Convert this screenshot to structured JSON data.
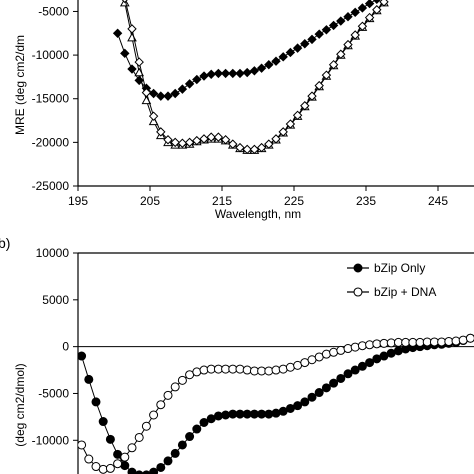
{
  "chart_data": [
    {
      "type": "line",
      "xlabel": "Wavelength, nm",
      "ylabel": "MRE (deg cm2/dm",
      "xlim": [
        195,
        250
      ],
      "ylim": [
        -25000,
        -3000
      ],
      "xticks": [
        195,
        205,
        215,
        225,
        235,
        245
      ],
      "xtick_labels": [
        "195",
        "205",
        "215",
        "225",
        "235",
        "245"
      ],
      "yticks": [
        -25000,
        -20000,
        -15000,
        -10000,
        -5000
      ],
      "ytick_labels": [
        "-25000",
        "-20000",
        "-15000",
        "-10000",
        "-5000"
      ],
      "grid": false,
      "series": [
        {
          "marker": "filled-diamond",
          "x": [
            200.5,
            201.5,
            202.5,
            203.5,
            204.5,
            205.5,
            206.5,
            207.5,
            208.5,
            209.5,
            210.5,
            211.5,
            212.5,
            213.5,
            214.5,
            215.5,
            216.5,
            217.5,
            218.5,
            219.5,
            220.5,
            221.5,
            222.5,
            223.5,
            224.5,
            225.5,
            226.5,
            227.5,
            228.5,
            229.5,
            230.5,
            231.5,
            232.5,
            233.5,
            234.5,
            235.5,
            236.5,
            237.5
          ],
          "y": [
            -7500,
            -9800,
            -11600,
            -12900,
            -13800,
            -14400,
            -14700,
            -14700,
            -14400,
            -13900,
            -13300,
            -12800,
            -12400,
            -12200,
            -12100,
            -12100,
            -12100,
            -12100,
            -12000,
            -11800,
            -11500,
            -11100,
            -10700,
            -10200,
            -9700,
            -9200,
            -8700,
            -8200,
            -7600,
            -7100,
            -6600,
            -6100,
            -5600,
            -5100,
            -4600,
            -4100,
            -3600,
            -3100
          ]
        },
        {
          "marker": "open-triangle",
          "x": [
            201.5,
            202.5,
            203.5,
            204.5,
            205.5,
            206.5,
            207.5,
            208.5,
            209.5,
            210.5,
            211.5,
            212.5,
            213.5,
            214.5,
            215.5,
            216.5,
            217.5,
            218.5,
            219.5,
            220.5,
            221.5,
            222.5,
            223.5,
            224.5,
            225.5,
            226.5,
            227.5,
            228.5,
            229.5,
            230.5,
            231.5,
            232.5,
            233.5,
            234.5,
            235.5,
            236.5,
            237.5
          ],
          "y": [
            -4000,
            -8000,
            -12000,
            -15200,
            -17600,
            -19200,
            -20000,
            -20300,
            -20300,
            -20200,
            -19900,
            -19700,
            -19600,
            -19600,
            -19800,
            -20300,
            -20700,
            -20900,
            -20900,
            -20700,
            -20300,
            -19700,
            -18900,
            -18000,
            -17000,
            -15900,
            -14800,
            -13600,
            -12400,
            -11200,
            -10000,
            -8900,
            -7800,
            -6800,
            -5800,
            -4900,
            -4000
          ]
        },
        {
          "marker": "open-diamond",
          "x": [
            201.5,
            202.5,
            203.5,
            204.5,
            205.5,
            206.5,
            207.5,
            208.5,
            209.5,
            210.5,
            211.5,
            212.5,
            213.5,
            214.5,
            215.5,
            216.5,
            217.5,
            218.5,
            219.5,
            220.5,
            221.5,
            222.5,
            223.5,
            224.5,
            225.5,
            226.5,
            227.5,
            228.5,
            229.5,
            230.5,
            231.5,
            232.5,
            233.5,
            234.5,
            235.5,
            236.5,
            237.5
          ],
          "y": [
            -3500,
            -7000,
            -10800,
            -14300,
            -17000,
            -18800,
            -19700,
            -20000,
            -20100,
            -20000,
            -19800,
            -19600,
            -19400,
            -19400,
            -19700,
            -20200,
            -20600,
            -20800,
            -20800,
            -20600,
            -20200,
            -19600,
            -18800,
            -17900,
            -16900,
            -15800,
            -14700,
            -13500,
            -12300,
            -11100,
            -9900,
            -8800,
            -7700,
            -6700,
            -5700,
            -4800,
            -3900
          ]
        }
      ]
    },
    {
      "type": "line",
      "panel_label": "b)",
      "ylabel": "(deg cm2/dmol)",
      "xlim": [
        195,
        250
      ],
      "ylim": [
        -13600,
        10000
      ],
      "yticks": [
        -10000,
        -5000,
        0,
        5000,
        10000
      ],
      "ytick_labels": [
        "-10000",
        "-5000",
        "0",
        "5000",
        "10000"
      ],
      "grid": false,
      "legend": {
        "position": "top-right",
        "entries": [
          "bZip Only",
          "bZip + DNA"
        ]
      },
      "series": [
        {
          "name": "bZip Only",
          "marker": "filled-circle",
          "x": [
            195.5,
            196.5,
            197.5,
            198.5,
            199.5,
            200.5,
            201.5,
            202.5,
            203.5,
            204.5,
            205.5,
            206.5,
            207.5,
            208.5,
            209.5,
            210.5,
            211.5,
            212.5,
            213.5,
            214.5,
            215.5,
            216.5,
            217.5,
            218.5,
            219.5,
            220.5,
            221.5,
            222.5,
            223.5,
            224.5,
            225.5,
            226.5,
            227.5,
            228.5,
            229.5,
            230.5,
            231.5,
            232.5,
            233.5,
            234.5,
            235.5,
            236.5,
            237.5,
            238.5,
            239.5,
            240.5,
            241.5,
            242.5,
            243.5,
            244.5,
            245.5,
            246.5,
            247.5,
            248.5,
            249.5
          ],
          "y": [
            -1000,
            -3500,
            -5900,
            -8000,
            -9900,
            -11500,
            -12700,
            -13400,
            -13700,
            -13700,
            -13400,
            -12900,
            -12200,
            -11400,
            -10500,
            -9600,
            -8800,
            -8100,
            -7700,
            -7400,
            -7300,
            -7200,
            -7200,
            -7200,
            -7200,
            -7200,
            -7200,
            -7100,
            -6900,
            -6600,
            -6300,
            -5900,
            -5400,
            -4900,
            -4400,
            -3900,
            -3400,
            -2900,
            -2500,
            -2100,
            -1700,
            -1300,
            -1000,
            -700,
            -450,
            -250,
            -100,
            0,
            100,
            200,
            250,
            350,
            450,
            650,
            900
          ]
        },
        {
          "name": "bZip + DNA",
          "marker": "open-circle",
          "x": [
            195.5,
            196.5,
            197.5,
            198.5,
            199.5,
            200.5,
            201.5,
            202.5,
            203.5,
            204.5,
            205.5,
            206.5,
            207.5,
            208.5,
            209.5,
            210.5,
            211.5,
            212.5,
            213.5,
            214.5,
            215.5,
            216.5,
            217.5,
            218.5,
            219.5,
            220.5,
            221.5,
            222.5,
            223.5,
            224.5,
            225.5,
            226.5,
            227.5,
            228.5,
            229.5,
            230.5,
            231.5,
            232.5,
            233.5,
            234.5,
            235.5,
            236.5,
            237.5,
            238.5,
            239.5,
            240.5,
            241.5,
            242.5,
            243.5,
            244.5,
            245.5,
            246.5,
            247.5,
            248.5,
            249.5
          ],
          "y": [
            -10500,
            -12000,
            -12800,
            -13100,
            -13000,
            -12500,
            -11800,
            -10800,
            -9700,
            -8500,
            -7300,
            -6200,
            -5200,
            -4300,
            -3600,
            -3000,
            -2700,
            -2500,
            -2400,
            -2400,
            -2400,
            -2400,
            -2400,
            -2500,
            -2600,
            -2600,
            -2600,
            -2500,
            -2400,
            -2200,
            -2000,
            -1700,
            -1400,
            -1100,
            -800,
            -600,
            -400,
            -200,
            -50,
            100,
            200,
            300,
            350,
            400,
            450,
            450,
            450,
            450,
            500,
            500,
            500,
            550,
            600,
            700,
            900
          ]
        }
      ]
    }
  ]
}
